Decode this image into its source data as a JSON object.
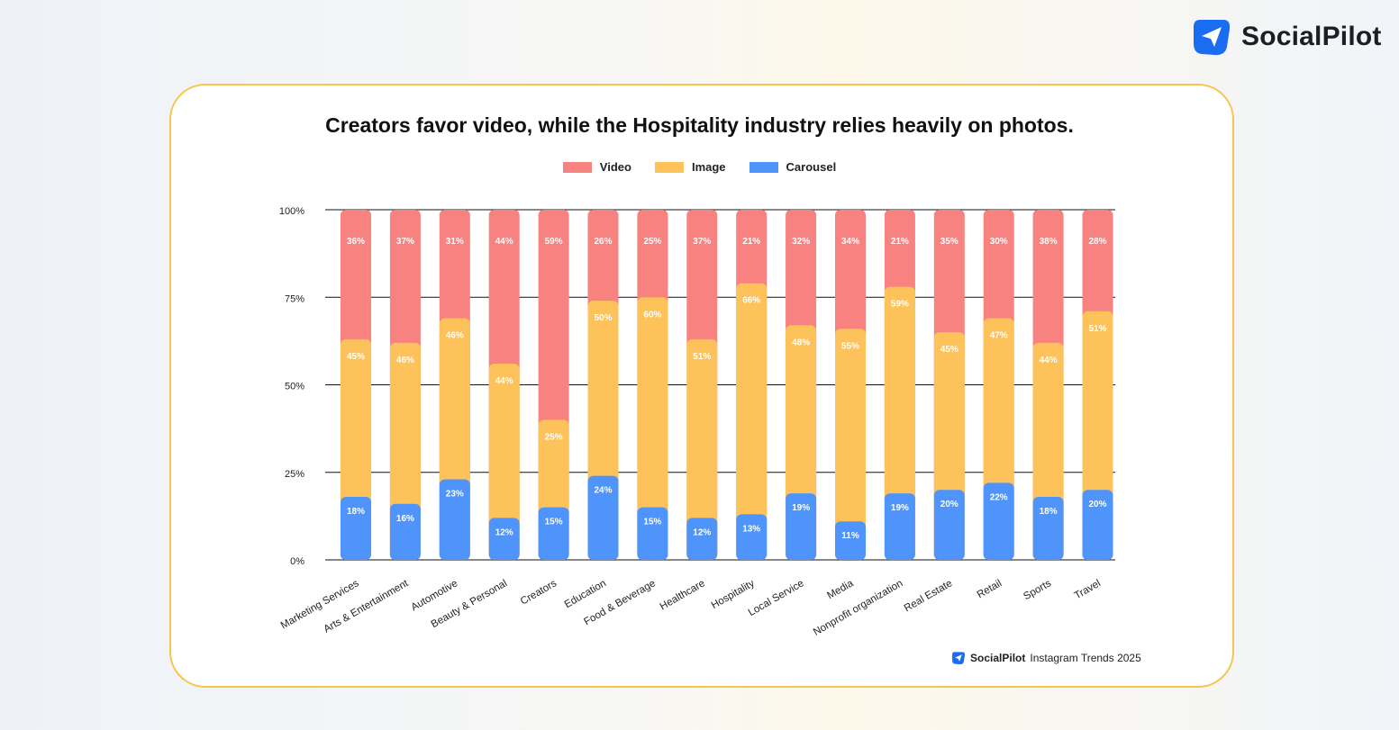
{
  "brand": {
    "name": "SocialPilot",
    "logo_icon": "paper-plane-icon",
    "logo_color": "#1a6cf0"
  },
  "footer": {
    "brand": "SocialPilot",
    "text": "Instagram Trends 2025"
  },
  "colors": {
    "Video": "#f7827f",
    "Image": "#fdc35a",
    "Carousel": "#4f94fb",
    "card_border": "#f6c64c"
  },
  "chart_data": {
    "type": "bar",
    "stacked": true,
    "title": "Creators favor video, while the Hospitality industry relies heavily on photos.",
    "legend": [
      "Video",
      "Image",
      "Carousel"
    ],
    "legend_position": "top",
    "ylim": [
      0,
      100
    ],
    "yticks": [
      "0%",
      "25%",
      "50%",
      "75%",
      "100%"
    ],
    "grid": true,
    "categories": [
      "Marketing Services",
      "Arts & Entertainment",
      "Automotive",
      "Beauty & Personal",
      "Creators",
      "Education",
      "Food & Beverage",
      "Healthcare",
      "Hospitality",
      "Local Service",
      "Media",
      "Nonprofit organization",
      "Real Estate",
      "Retail",
      "Sports",
      "Travel"
    ],
    "series": [
      {
        "name": "Carousel",
        "values": [
          18,
          16,
          23,
          12,
          15,
          24,
          15,
          12,
          13,
          19,
          11,
          19,
          20,
          22,
          18,
          20
        ]
      },
      {
        "name": "Image",
        "values": [
          45,
          46,
          46,
          44,
          25,
          50,
          60,
          51,
          66,
          48,
          55,
          59,
          45,
          47,
          44,
          51
        ]
      },
      {
        "name": "Video",
        "values": [
          36,
          37,
          31,
          44,
          59,
          26,
          25,
          37,
          21,
          32,
          34,
          21,
          35,
          30,
          38,
          28
        ]
      }
    ]
  }
}
